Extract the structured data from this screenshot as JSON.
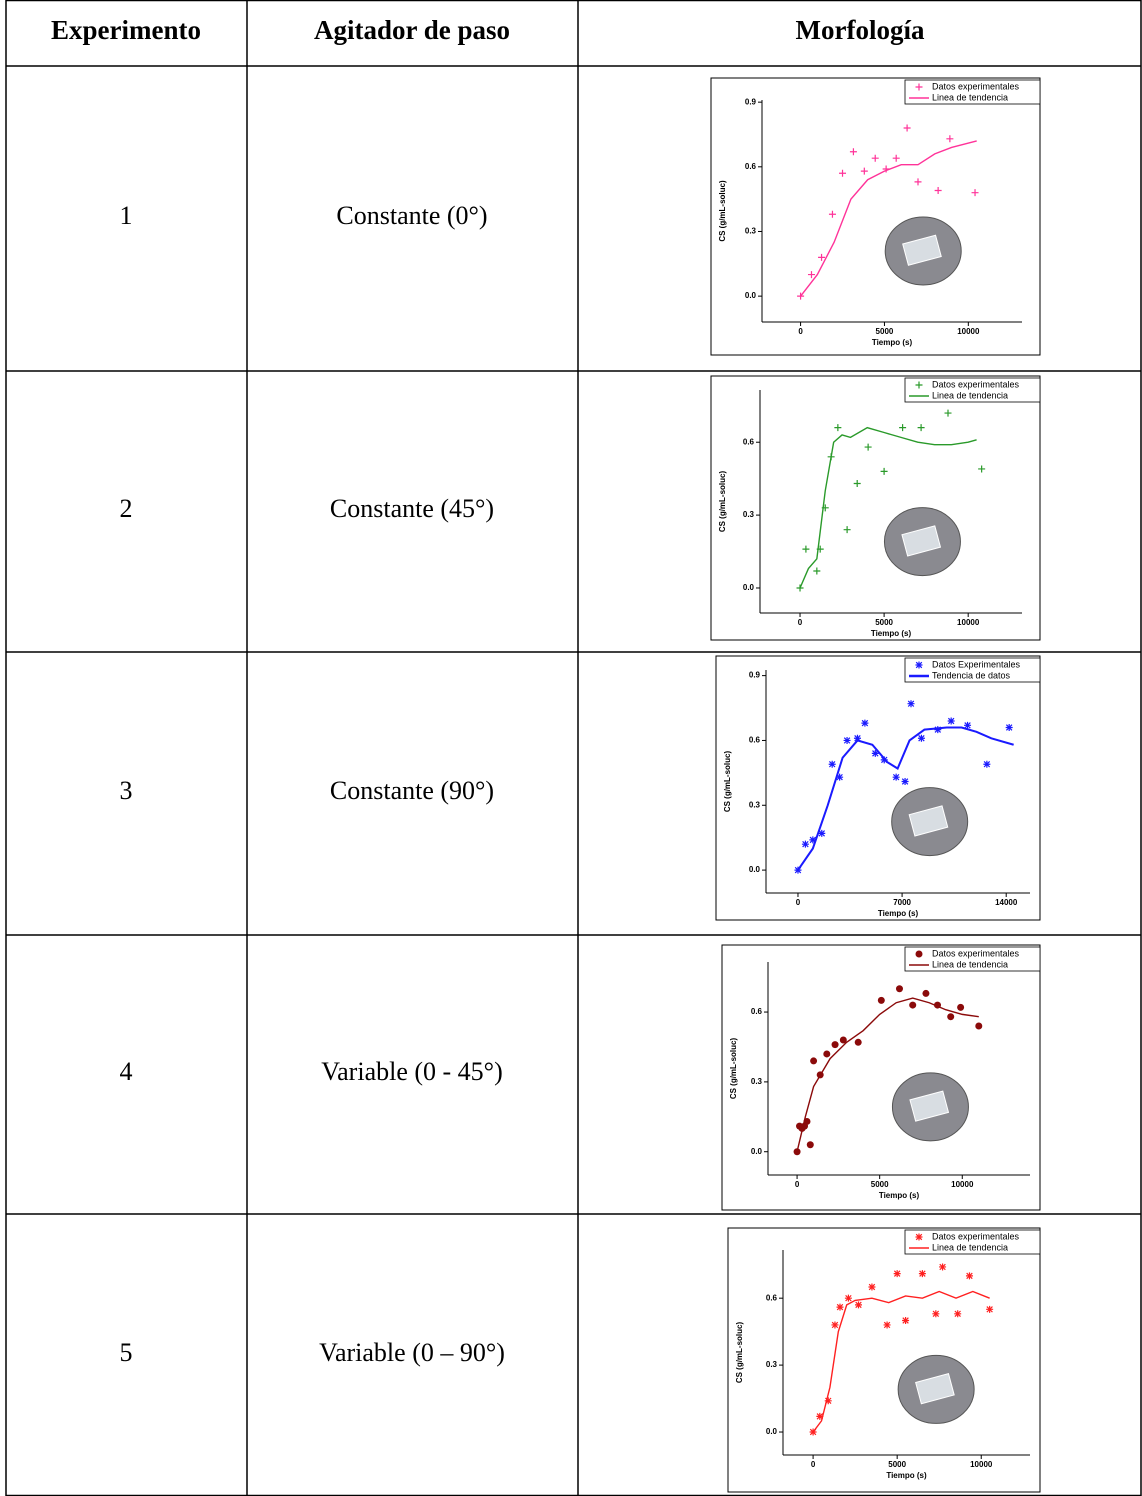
{
  "table": {
    "headers": [
      "Experimento",
      "Agitador de paso",
      "Morfología"
    ],
    "rows": [
      {
        "cells": [
          "1",
          "Constante (0°)"
        ],
        "chart": {
          "type": "scatter",
          "x_label": "Tiempo (s)",
          "y_label": "CS (g/mL-soluc)",
          "xlim": [
            -2300,
            13200
          ],
          "ylim": [
            -0.12,
            0.91
          ],
          "xticks": [
            0,
            5000,
            10000
          ],
          "yticks": [
            {
              "value": 0,
              "label": "0.0"
            },
            0.3,
            0.6,
            0.9
          ],
          "series": [
            {
              "name": "Datos experimentales",
              "type": "markers",
              "marker": "plus",
              "color": "#ff3399",
              "x": [
                0,
                650,
                1250,
                1900,
                2500,
                3150,
                3800,
                4450,
                5100,
                5700,
                6350,
                7000,
                8200,
                8900,
                10400
              ],
              "values": [
                0,
                0.1,
                0.18,
                0.38,
                0.57,
                0.67,
                0.58,
                0.64,
                0.59,
                0.64,
                0.78,
                0.53,
                0.49,
                0.73,
                0.48
              ]
            },
            {
              "name": "Linea de tendencia",
              "type": "line",
              "color": "#ff3399",
              "x": [
                0,
                1000,
                2000,
                3000,
                4000,
                5000,
                6000,
                7000,
                8000,
                9000,
                10500
              ],
              "values": [
                0,
                0.1,
                0.25,
                0.45,
                0.54,
                0.58,
                0.61,
                0.61,
                0.66,
                0.69,
                0.72
              ]
            }
          ]
        }
      },
      {
        "cells": [
          "2",
          "Constante (45°)"
        ],
        "chart": {
          "type": "scatter",
          "x_label": "Tiempo (s)",
          "y_label": "CS (g/mL-soluc)",
          "xlim": [
            -2380,
            13200
          ],
          "ylim": [
            -0.103,
            0.815
          ],
          "xticks": [
            0,
            5000,
            10000
          ],
          "yticks": [
            {
              "value": 0,
              "label": "0.0"
            },
            0.3,
            0.6
          ],
          "series": [
            {
              "name": "Datos experimentales",
              "type": "markers",
              "marker": "plus",
              "color": "#2a9a2a",
              "x": [
                0,
                350,
                1000,
                1200,
                1500,
                1850,
                2250,
                2800,
                3400,
                4050,
                5000,
                6100,
                7200,
                8800,
                10800
              ],
              "values": [
                0,
                0.16,
                0.07,
                0.16,
                0.33,
                0.54,
                0.66,
                0.24,
                0.43,
                0.58,
                0.48,
                0.66,
                0.66,
                0.72,
                0.49
              ]
            },
            {
              "name": "Linea de tendencia",
              "type": "line",
              "color": "#2a9a2a",
              "x": [
                0,
                500,
                1000,
                1500,
                2000,
                2500,
                3000,
                4000,
                5000,
                6000,
                7000,
                8000,
                9000,
                10000,
                10500
              ],
              "values": [
                0,
                0.08,
                0.12,
                0.4,
                0.6,
                0.63,
                0.62,
                0.66,
                0.64,
                0.62,
                0.6,
                0.59,
                0.59,
                0.6,
                0.61
              ]
            }
          ]
        }
      },
      {
        "cells": [
          "3",
          "Constante (90°)"
        ],
        "chart": {
          "type": "scatter",
          "x_label": "Tiempo (s)",
          "y_label": "CS (g/mL-soluc)",
          "xlim": [
            -2150,
            15600
          ],
          "ylim": [
            -0.106,
            0.926
          ],
          "xticks": [
            0,
            7000,
            14000
          ],
          "yticks": [
            {
              "value": 0,
              "label": "0.0"
            },
            0.3,
            0.6,
            0.9
          ],
          "series": [
            {
              "name": "Datos Experimentales",
              "type": "markers",
              "marker": "asterisk",
              "color": "#1a1aff",
              "x": [
                0,
                500,
                1000,
                1600,
                2300,
                2800,
                3300,
                4000,
                4500,
                5200,
                5800,
                6600,
                7200,
                7600,
                8300,
                9400,
                10300,
                11400,
                12700,
                14200
              ],
              "values": [
                0,
                0.12,
                0.14,
                0.17,
                0.49,
                0.43,
                0.6,
                0.61,
                0.68,
                0.54,
                0.51,
                0.43,
                0.41,
                0.77,
                0.61,
                0.65,
                0.69,
                0.67,
                0.49,
                0.66
              ]
            },
            {
              "name": "Tendencia de datos",
              "type": "line",
              "color": "#1a1aff",
              "x": [
                0,
                1000,
                2000,
                3000,
                4000,
                5000,
                6000,
                6700,
                7500,
                8500,
                10000,
                11000,
                12000,
                13000,
                14500
              ],
              "values": [
                0,
                0.1,
                0.3,
                0.52,
                0.6,
                0.58,
                0.5,
                0.47,
                0.6,
                0.65,
                0.66,
                0.66,
                0.64,
                0.61,
                0.58
              ]
            }
          ]
        }
      },
      {
        "cells": [
          "4",
          "Variable (0 - 45°)"
        ],
        "chart": {
          "type": "scatter",
          "x_label": "Tiempo (s)",
          "y_label": "CS (g/mL-soluc)",
          "xlim": [
            -1760,
            14100
          ],
          "ylim": [
            -0.1,
            0.815
          ],
          "xticks": [
            0,
            5000,
            10000
          ],
          "yticks": [
            {
              "value": 0,
              "label": "0.0"
            },
            0.3,
            0.6
          ],
          "series": [
            {
              "name": "Datos experimentales",
              "type": "markers",
              "marker": "circle",
              "color": "#8b0a0a",
              "x": [
                0,
                150,
                300,
                450,
                600,
                800,
                1000,
                1400,
                1800,
                2300,
                2800,
                3700,
                5100,
                6200,
                7000,
                7800,
                8500,
                9300,
                9900,
                11000
              ],
              "values": [
                0,
                0.11,
                0.1,
                0.11,
                0.13,
                0.03,
                0.39,
                0.33,
                0.42,
                0.46,
                0.48,
                0.47,
                0.65,
                0.7,
                0.63,
                0.68,
                0.63,
                0.58,
                0.62,
                0.54
              ]
            },
            {
              "name": "Linea de tendencia",
              "type": "line",
              "color": "#8b0a0a",
              "x": [
                0,
                500,
                1000,
                2000,
                3000,
                4000,
                5000,
                6000,
                7000,
                8000,
                9000,
                10000,
                11000
              ],
              "values": [
                0,
                0.15,
                0.28,
                0.4,
                0.47,
                0.52,
                0.59,
                0.64,
                0.66,
                0.64,
                0.61,
                0.59,
                0.58
              ]
            }
          ]
        }
      },
      {
        "cells": [
          "5",
          "Variable (0 – 90°)"
        ],
        "chart": {
          "type": "scatter",
          "x_label": "Tiempo (s)",
          "y_label": "CS (g/mL-soluc)",
          "xlim": [
            -1790,
            12900
          ],
          "ylim": [
            -0.103,
            0.816
          ],
          "xticks": [
            0,
            5000,
            10000
          ],
          "yticks": [
            {
              "value": 0,
              "label": "0.0"
            },
            0.3,
            0.6
          ],
          "series": [
            {
              "name": "Datos experimentales",
              "type": "markers",
              "marker": "asterisk",
              "color": "#ff2020",
              "x": [
                0,
                400,
                900,
                1300,
                1600,
                2100,
                2700,
                3500,
                4400,
                5000,
                5500,
                6500,
                7300,
                7700,
                8600,
                9300,
                10500
              ],
              "values": [
                0,
                0.07,
                0.14,
                0.48,
                0.56,
                0.6,
                0.57,
                0.65,
                0.48,
                0.71,
                0.5,
                0.71,
                0.53,
                0.74,
                0.53,
                0.7,
                0.55
              ]
            },
            {
              "name": "Linea de tendencia",
              "type": "line",
              "color": "#ff2020",
              "x": [
                0,
                500,
                1000,
                1500,
                2000,
                2500,
                3500,
                4500,
                5500,
                6500,
                7500,
                8500,
                9500,
                10500
              ],
              "values": [
                0,
                0.05,
                0.2,
                0.45,
                0.57,
                0.59,
                0.6,
                0.58,
                0.61,
                0.6,
                0.63,
                0.6,
                0.63,
                0.6
              ]
            }
          ]
        }
      }
    ]
  }
}
